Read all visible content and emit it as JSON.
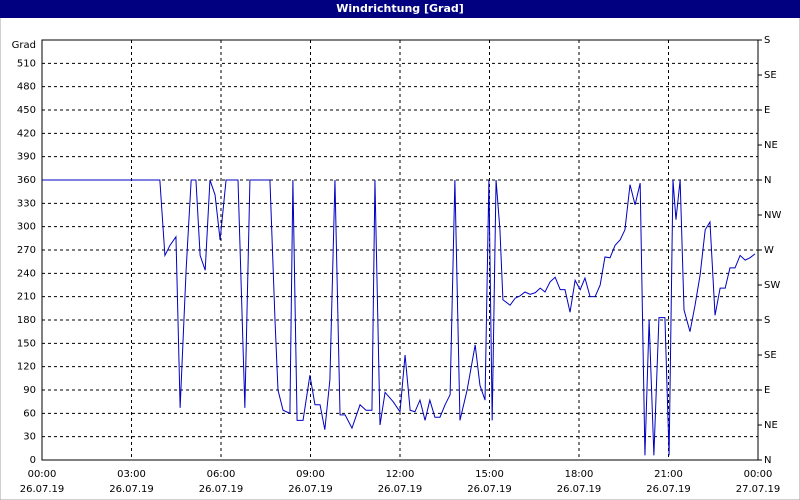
{
  "chart_data": {
    "type": "line",
    "title": "Windrichtung [Grad]",
    "y_label": "Grad",
    "x": [
      0,
      3.95,
      4.12,
      4.29,
      4.49,
      4.63,
      4.83,
      5.0,
      5.16,
      5.3,
      5.47,
      5.63,
      5.8,
      5.97,
      6.17,
      6.57,
      6.8,
      6.97,
      7.64,
      7.81,
      7.91,
      8.08,
      8.31,
      8.41,
      8.55,
      8.75,
      8.98,
      9.15,
      9.32,
      9.48,
      9.65,
      9.82,
      9.99,
      10.16,
      10.39,
      10.66,
      10.86,
      11.06,
      11.16,
      11.33,
      11.5,
      11.77,
      12.0,
      12.17,
      12.34,
      12.5,
      12.67,
      12.84,
      13.0,
      13.17,
      13.34,
      13.51,
      13.68,
      13.84,
      14.01,
      14.25,
      14.52,
      14.68,
      14.85,
      14.98,
      15.09,
      15.22,
      15.35,
      15.45,
      15.69,
      15.86,
      16.02,
      16.19,
      16.36,
      16.53,
      16.7,
      16.86,
      17.03,
      17.2,
      17.37,
      17.53,
      17.7,
      17.87,
      18.04,
      18.2,
      18.37,
      18.54,
      18.71,
      18.87,
      19.04,
      19.21,
      19.38,
      19.54,
      19.71,
      19.88,
      20.05,
      20.21,
      20.35,
      20.51,
      20.68,
      20.88,
      21.02,
      21.15,
      21.25,
      21.39,
      21.52,
      21.72,
      21.89,
      22.06,
      22.23,
      22.39,
      22.56,
      22.73,
      22.9,
      23.06,
      23.23,
      23.4,
      23.57,
      23.73,
      23.9
    ],
    "values": [
      360,
      360,
      263,
      276,
      287,
      67,
      244,
      360,
      360,
      263,
      244,
      360,
      341,
      283,
      360,
      360,
      67,
      360,
      360,
      180,
      90,
      64,
      60,
      360,
      51,
      51,
      109,
      71,
      71,
      39,
      103,
      360,
      58,
      58,
      41,
      71,
      64,
      64,
      360,
      45,
      87,
      75,
      62,
      135,
      64,
      62,
      77,
      51,
      77,
      55,
      55,
      71,
      84,
      360,
      51,
      90,
      148,
      96,
      77,
      360,
      51,
      360,
      296,
      206,
      199,
      208,
      211,
      216,
      213,
      215,
      221,
      216,
      229,
      235,
      219,
      219,
      190,
      231,
      219,
      234,
      210,
      210,
      225,
      261,
      260,
      276,
      283,
      296,
      354,
      328,
      356,
      6,
      180,
      6,
      183,
      183,
      6,
      360,
      309,
      360,
      193,
      165,
      199,
      238,
      296,
      306,
      186,
      221,
      221,
      247,
      247,
      263,
      257,
      260,
      265
    ],
    "color": "#0000c0",
    "xlim": [
      0,
      24
    ],
    "xticks": [
      {
        "value": 0,
        "label": "00:00"
      },
      {
        "value": 3,
        "label": "03:00"
      },
      {
        "value": 6,
        "label": "06:00"
      },
      {
        "value": 9,
        "label": "09:00"
      },
      {
        "value": 12,
        "label": "12:00"
      },
      {
        "value": 15,
        "label": "15:00"
      },
      {
        "value": 18,
        "label": "18:00"
      },
      {
        "value": 21,
        "label": "21:00"
      },
      {
        "value": 24,
        "label": "00:00"
      }
    ],
    "xtick_dates": [
      "26.07.19",
      "26.07.19",
      "26.07.19",
      "26.07.19",
      "26.07.19",
      "26.07.19",
      "26.07.19",
      "26.07.19",
      "27.07.19"
    ],
    "ylim": [
      0,
      540
    ],
    "yticks": [
      0,
      30,
      60,
      90,
      120,
      150,
      180,
      210,
      240,
      270,
      300,
      330,
      360,
      390,
      420,
      450,
      480,
      510
    ],
    "y2lim": [
      0,
      540
    ],
    "y2ticks": [
      {
        "value": 0,
        "label": "N"
      },
      {
        "value": 45,
        "label": "NE"
      },
      {
        "value": 90,
        "label": "E"
      },
      {
        "value": 135,
        "label": "SE"
      },
      {
        "value": 180,
        "label": "S"
      },
      {
        "value": 225,
        "label": "SW"
      },
      {
        "value": 270,
        "label": "W"
      },
      {
        "value": 315,
        "label": "NW"
      },
      {
        "value": 360,
        "label": "N"
      },
      {
        "value": 405,
        "label": "NE"
      },
      {
        "value": 450,
        "label": "E"
      },
      {
        "value": 495,
        "label": "SE"
      },
      {
        "value": 540,
        "label": "S"
      }
    ],
    "grid": true
  }
}
